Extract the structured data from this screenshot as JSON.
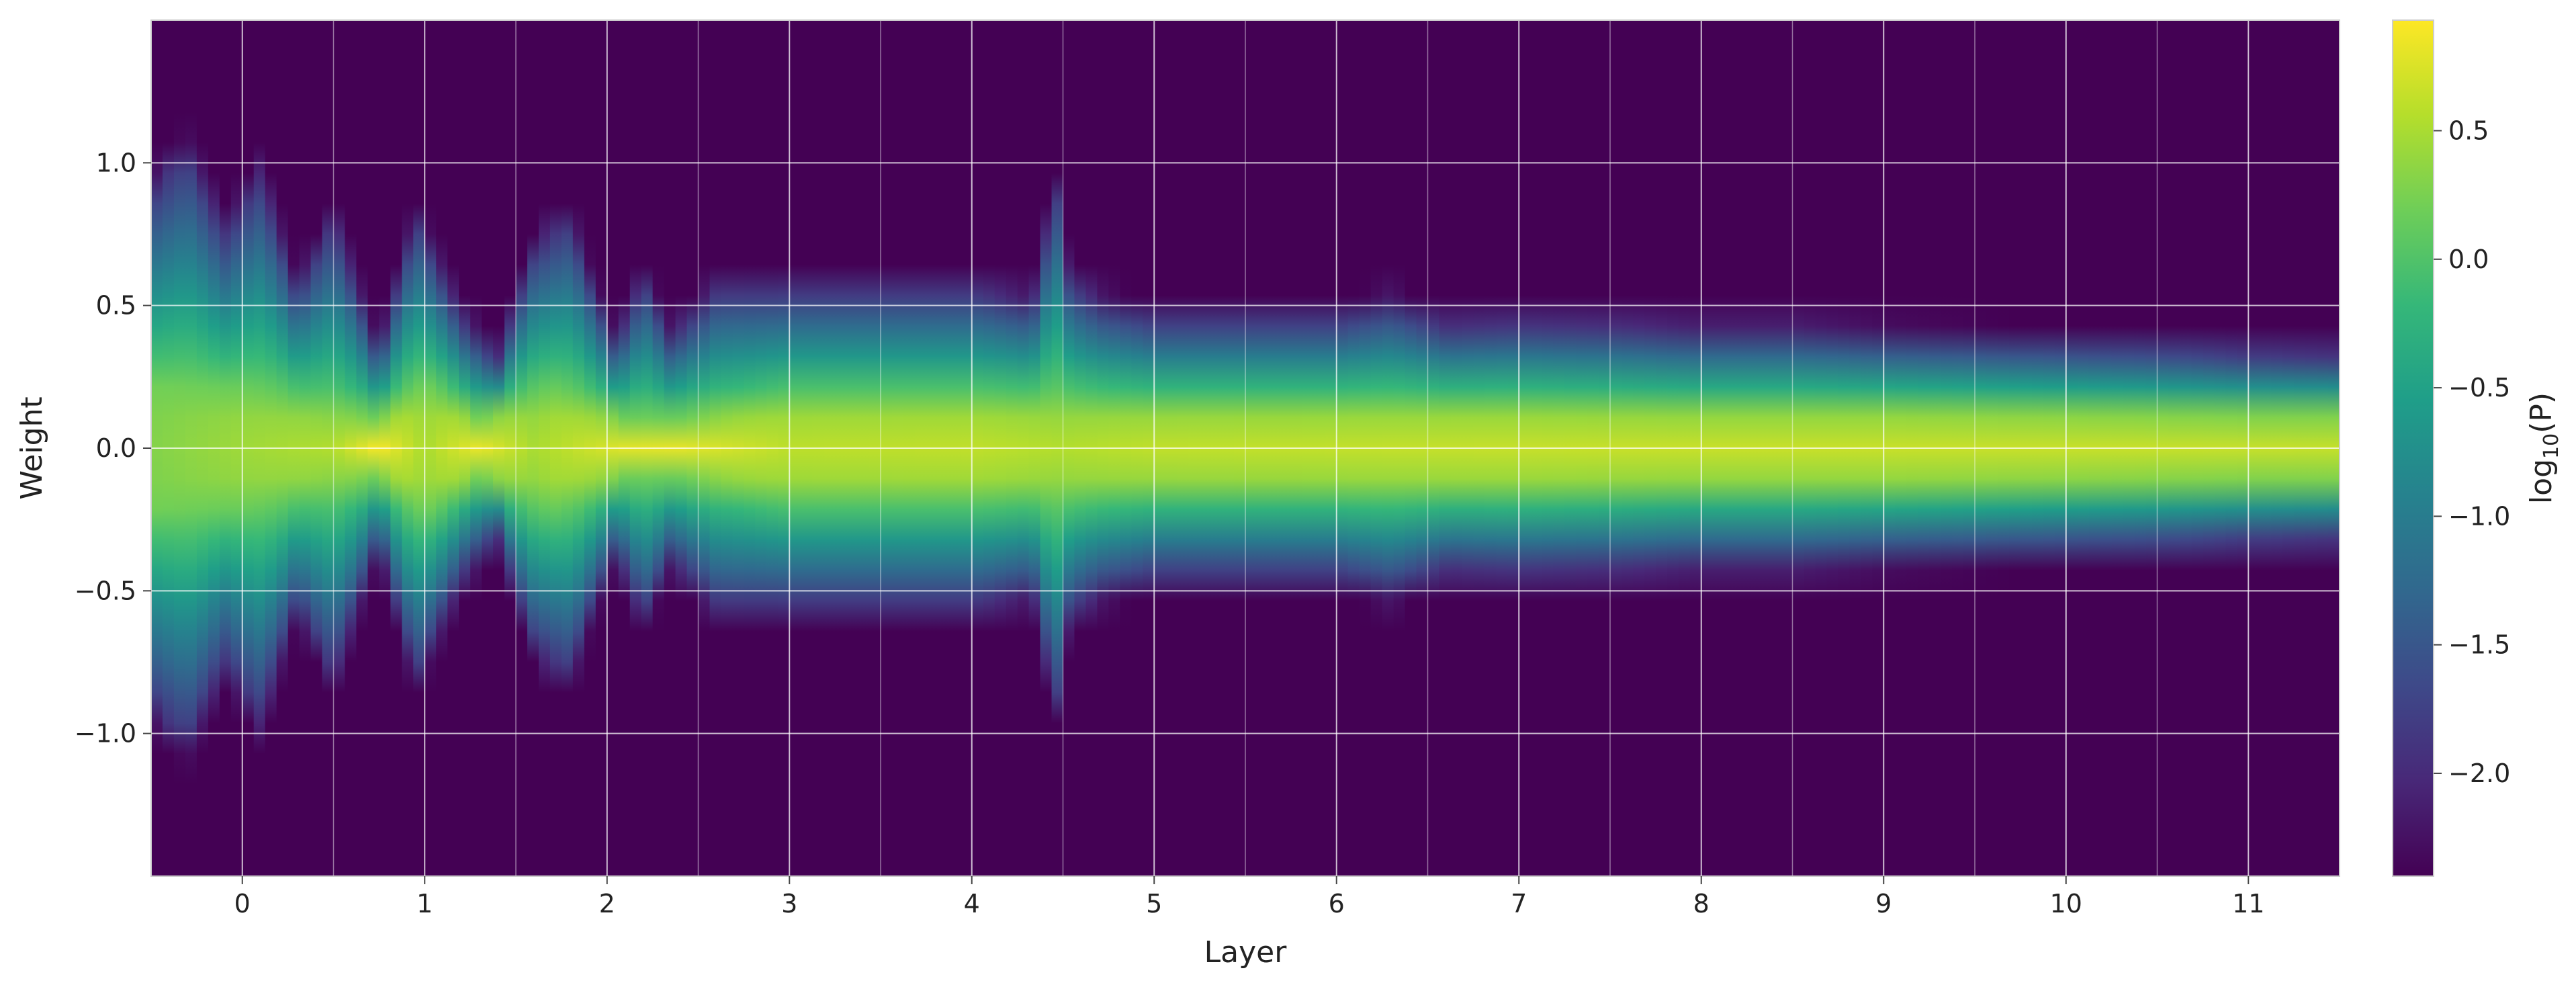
{
  "chart_data": {
    "type": "heatmap",
    "title": "",
    "xlabel": "Layer",
    "ylabel": "Weight",
    "colorbar_label": "log10(P)",
    "colorbar_label_base": "log",
    "colorbar_label_sub": "10",
    "colorbar_label_rest": "(P)",
    "colormap": "viridis",
    "colormap_stops": [
      "#440154",
      "#482878",
      "#3e4989",
      "#31688e",
      "#26828e",
      "#1f9e89",
      "#35b779",
      "#6ece58",
      "#b5de2b",
      "#fde725"
    ],
    "xlim": [
      -0.5,
      11.5
    ],
    "ylim": [
      -1.5,
      1.5
    ],
    "clim": [
      -2.4,
      0.93
    ],
    "grid": true,
    "grid_color": "#ffffff",
    "x_ticks": [
      0,
      1,
      2,
      3,
      4,
      5,
      6,
      7,
      8,
      9,
      10,
      11
    ],
    "x_tick_labels": [
      "0",
      "1",
      "2",
      "3",
      "4",
      "5",
      "6",
      "7",
      "8",
      "9",
      "10",
      "11"
    ],
    "y_ticks": [
      1.0,
      0.5,
      0.0,
      -0.5,
      -1.0
    ],
    "y_tick_labels": [
      "1.0",
      "0.5",
      "0.0",
      "−0.5",
      "−1.0"
    ],
    "colorbar_ticks": [
      0.5,
      0.0,
      -0.5,
      -1.0,
      -1.5,
      -2.0
    ],
    "colorbar_tick_labels": [
      "0.5",
      "0.0",
      "−0.5",
      "−1.0",
      "−1.5",
      "−2.0"
    ],
    "x_minor_grid": [
      -0.5,
      0.5,
      1.5,
      2.5,
      3.5,
      4.5,
      5.5,
      6.5,
      7.5,
      8.5,
      9.5,
      10.5,
      11.5
    ],
    "column_width": 0.0625,
    "spread_points": [
      [
        -0.5,
        0.9
      ],
      [
        -0.3,
        1.05
      ],
      [
        -0.1,
        0.75
      ],
      [
        0.1,
        0.95
      ],
      [
        0.3,
        0.55
      ],
      [
        0.5,
        0.8
      ],
      [
        0.75,
        0.32
      ],
      [
        0.95,
        0.82
      ],
      [
        1.2,
        0.45
      ],
      [
        1.4,
        0.3
      ],
      [
        1.6,
        0.7
      ],
      [
        1.8,
        0.8
      ],
      [
        1.9,
        0.6
      ],
      [
        2.05,
        0.35
      ],
      [
        2.2,
        0.6
      ],
      [
        2.35,
        0.38
      ],
      [
        2.6,
        0.55
      ],
      [
        3.0,
        0.55
      ],
      [
        3.5,
        0.55
      ],
      [
        4.0,
        0.55
      ],
      [
        4.3,
        0.5
      ],
      [
        4.5,
        0.6
      ],
      [
        4.7,
        0.5
      ],
      [
        5.0,
        0.45
      ],
      [
        5.5,
        0.45
      ],
      [
        6.0,
        0.45
      ],
      [
        6.3,
        0.5
      ],
      [
        6.6,
        0.42
      ],
      [
        7.0,
        0.43
      ],
      [
        7.5,
        0.42
      ],
      [
        8.0,
        0.4
      ],
      [
        8.5,
        0.4
      ],
      [
        9.0,
        0.38
      ],
      [
        9.5,
        0.37
      ],
      [
        10.0,
        0.36
      ],
      [
        10.5,
        0.35
      ],
      [
        11.0,
        0.33
      ],
      [
        11.5,
        0.32
      ]
    ],
    "core_points": [
      [
        -0.5,
        0.22
      ],
      [
        0.0,
        0.2
      ],
      [
        0.75,
        0.1
      ],
      [
        1.0,
        0.22
      ],
      [
        1.3,
        0.1
      ],
      [
        1.7,
        0.2
      ],
      [
        2.1,
        0.1
      ],
      [
        2.4,
        0.1
      ],
      [
        3.0,
        0.17
      ],
      [
        4.0,
        0.17
      ],
      [
        5.0,
        0.15
      ],
      [
        6.0,
        0.15
      ],
      [
        7.0,
        0.15
      ],
      [
        8.0,
        0.14
      ],
      [
        9.0,
        0.14
      ],
      [
        10.0,
        0.13
      ],
      [
        11.0,
        0.12
      ],
      [
        11.5,
        0.12
      ]
    ],
    "peak_points": [
      [
        -0.5,
        0.3
      ],
      [
        0.0,
        0.45
      ],
      [
        0.5,
        0.55
      ],
      [
        0.75,
        0.92
      ],
      [
        1.0,
        0.5
      ],
      [
        1.3,
        0.85
      ],
      [
        1.6,
        0.5
      ],
      [
        2.1,
        0.8
      ],
      [
        2.4,
        0.82
      ],
      [
        3.0,
        0.6
      ],
      [
        4.0,
        0.62
      ],
      [
        4.5,
        0.55
      ],
      [
        5.0,
        0.62
      ],
      [
        6.0,
        0.63
      ],
      [
        7.0,
        0.65
      ],
      [
        8.0,
        0.66
      ],
      [
        9.0,
        0.66
      ],
      [
        10.0,
        0.66
      ],
      [
        11.0,
        0.65
      ],
      [
        11.5,
        0.64
      ]
    ],
    "spikes": [
      {
        "layer": 4.45,
        "reach": 0.95,
        "width": 0.05
      }
    ]
  }
}
